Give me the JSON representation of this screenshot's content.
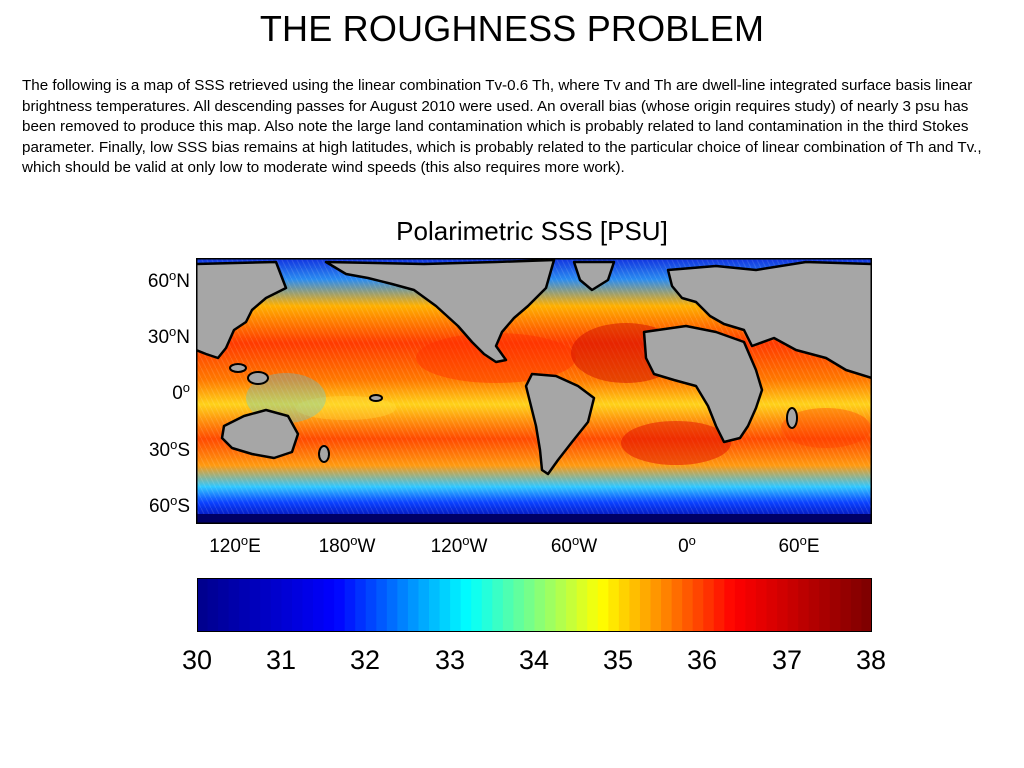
{
  "page": {
    "title": "THE ROUGHNESS PROBLEM",
    "description": "The following is a map of SSS retrieved using the linear combination Tv-0.6 Th, where Tv and Th are dwell-line integrated surface basis linear brightness temperatures. All descending passes for August 2010 were used. An overall bias (whose origin requires study) of nearly 3 psu has been removed to produce this map.  Also note the large land contamination which is probably related to land contamination in the third Stokes parameter. Finally, low SSS bias remains at high latitudes, which is probably related to the particular choice of linear combination of Th and Tv., which should be valid at only low to moderate wind speeds (this also requires more work)."
  },
  "map": {
    "title": "Polarimetric SSS [PSU]",
    "y_axis": [
      {
        "value": "60",
        "suffix": "N"
      },
      {
        "value": "30",
        "suffix": "N"
      },
      {
        "value": "0",
        "suffix": ""
      },
      {
        "value": "30",
        "suffix": "S"
      },
      {
        "value": "60",
        "suffix": "S"
      }
    ],
    "x_axis": [
      {
        "value": "120",
        "suffix": "E"
      },
      {
        "value": "180",
        "suffix": "W"
      },
      {
        "value": "120",
        "suffix": "W"
      },
      {
        "value": "60",
        "suffix": "W"
      },
      {
        "value": "0",
        "suffix": ""
      },
      {
        "value": "60",
        "suffix": "E"
      }
    ],
    "degree_symbol": "o",
    "land_color": "#a6a6a6",
    "coastline_color": "#000000"
  },
  "colorbar": {
    "min": 30,
    "max": 38,
    "ticks": [
      "30",
      "31",
      "32",
      "33",
      "34",
      "35",
      "36",
      "37",
      "38"
    ],
    "colormap": "jet",
    "colors": [
      "#00008f",
      "#0000ff",
      "#00ffff",
      "#ffff00",
      "#ff0000",
      "#800000"
    ]
  }
}
